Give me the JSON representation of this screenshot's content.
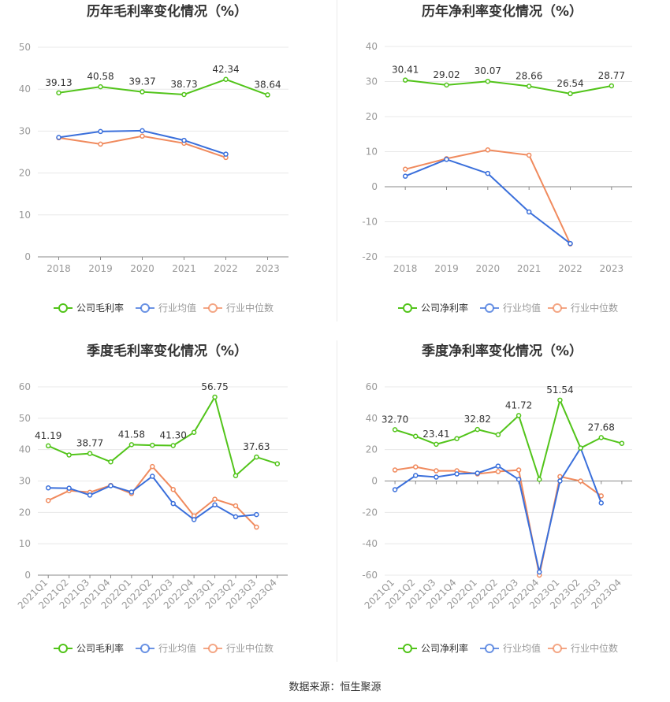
{
  "source": "数据来源：恒生聚源",
  "colors": {
    "company": "#52c41a",
    "industry_avg": "#3a6fdb",
    "industry_median": "#f08a5d"
  },
  "chart_data": [
    {
      "type": "line",
      "title": "历年毛利率变化情况（%）",
      "categories": [
        "2018",
        "2019",
        "2020",
        "2021",
        "2022",
        "2023"
      ],
      "ylim": [
        0,
        50
      ],
      "yticks": [
        0,
        10,
        20,
        30,
        40,
        50
      ],
      "series": [
        {
          "name": "公司毛利率",
          "values": [
            39.13,
            40.58,
            39.37,
            38.73,
            42.34,
            38.64
          ],
          "labels": [
            "39.13",
            "40.58",
            "39.37",
            "38.73",
            "42.34",
            "38.64"
          ]
        },
        {
          "name": "行业均值",
          "values": [
            28.5,
            29.9,
            30.1,
            27.8,
            24.5,
            null
          ]
        },
        {
          "name": "行业中位数",
          "values": [
            28.4,
            26.9,
            28.8,
            27.1,
            23.7,
            null
          ]
        }
      ],
      "legend": "bottom"
    },
    {
      "type": "line",
      "title": "历年净利率变化情况（%）",
      "categories": [
        "2018",
        "2019",
        "2020",
        "2021",
        "2022",
        "2023"
      ],
      "ylim": [
        -20,
        40
      ],
      "yticks": [
        -20,
        -10,
        0,
        10,
        20,
        30,
        40
      ],
      "series": [
        {
          "name": "公司净利率",
          "values": [
            30.41,
            29.02,
            30.07,
            28.66,
            26.54,
            28.77
          ],
          "labels": [
            "30.41",
            "29.02",
            "30.07",
            "28.66",
            "26.54",
            "28.77"
          ]
        },
        {
          "name": "行业均值",
          "values": [
            3.0,
            7.8,
            3.8,
            -7.2,
            -16.2,
            null
          ]
        },
        {
          "name": "行业中位数",
          "values": [
            5.0,
            8.0,
            10.5,
            9.0,
            -16.3,
            null
          ]
        }
      ],
      "legend": "bottom"
    },
    {
      "type": "line",
      "title": "季度毛利率变化情况（%）",
      "categories": [
        "2021Q1",
        "2021Q2",
        "2021Q3",
        "2021Q4",
        "2022Q1",
        "2022Q2",
        "2022Q3",
        "2022Q4",
        "2023Q1",
        "2023Q2",
        "2023Q3",
        "2023Q4"
      ],
      "ylim": [
        0,
        60
      ],
      "yticks": [
        0,
        10,
        20,
        30,
        40,
        50,
        60
      ],
      "series": [
        {
          "name": "公司毛利率",
          "values": [
            41.19,
            38.3,
            38.77,
            36.1,
            41.58,
            41.4,
            41.3,
            45.5,
            56.75,
            31.7,
            37.63,
            35.5
          ],
          "labels": [
            "41.19",
            "",
            "38.77",
            "",
            "41.58",
            "",
            "41.30",
            "",
            "56.75",
            "",
            "37.63",
            ""
          ]
        },
        {
          "name": "行业均值",
          "values": [
            27.8,
            27.7,
            25.5,
            28.5,
            26.5,
            31.5,
            22.8,
            17.7,
            22.4,
            18.6,
            19.3,
            null
          ]
        },
        {
          "name": "行业中位数",
          "values": [
            23.8,
            26.9,
            26.4,
            28.6,
            26.0,
            34.6,
            27.3,
            18.9,
            24.2,
            22.1,
            15.3,
            null
          ]
        }
      ],
      "legend": "bottom"
    },
    {
      "type": "line",
      "title": "季度净利率变化情况（%）",
      "categories": [
        "2021Q1",
        "2021Q2",
        "2021Q3",
        "2021Q4",
        "2022Q1",
        "2022Q2",
        "2022Q3",
        "2022Q4",
        "2023Q1",
        "2023Q2",
        "2023Q3",
        "2023Q4"
      ],
      "ylim": [
        -60,
        60
      ],
      "yticks": [
        -60,
        -40,
        -20,
        0,
        20,
        40,
        60
      ],
      "series": [
        {
          "name": "公司净利率",
          "values": [
            32.7,
            28.5,
            23.41,
            27.0,
            32.82,
            29.5,
            41.72,
            1.0,
            51.54,
            21.0,
            27.68,
            24.0
          ],
          "labels": [
            "32.70",
            "",
            "23.41",
            "",
            "32.82",
            "",
            "41.72",
            "",
            "51.54",
            "",
            "27.68",
            ""
          ]
        },
        {
          "name": "行业均值",
          "values": [
            -5.5,
            3.5,
            2.5,
            4.5,
            5.0,
            9.5,
            1.0,
            -58.0,
            0.0,
            21.0,
            -14.0,
            null
          ]
        },
        {
          "name": "行业中位数",
          "values": [
            7.0,
            9.0,
            6.5,
            6.5,
            4.5,
            6.0,
            7.0,
            -60.0,
            2.8,
            0.0,
            -9.5,
            null
          ]
        }
      ],
      "legend": "bottom"
    }
  ]
}
